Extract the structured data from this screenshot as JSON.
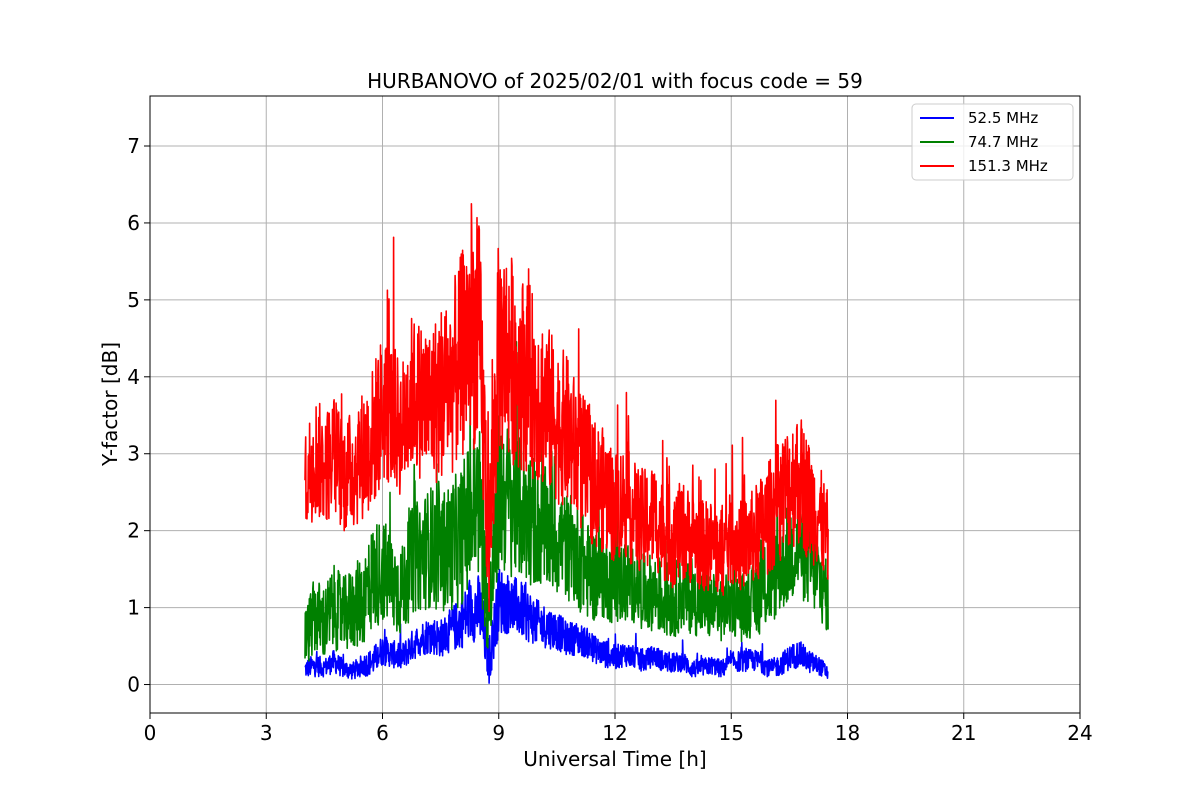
{
  "chart_data": {
    "type": "line",
    "title": "HURBANOVO of 2025/02/01 with focus code = 59",
    "xlabel": "Universal Time [h]",
    "ylabel": "Y-factor [dB]",
    "xlim": [
      0,
      24
    ],
    "ylim": [
      -0.37,
      7.65
    ],
    "xticks": [
      0,
      3,
      6,
      9,
      12,
      15,
      18,
      21,
      24
    ],
    "yticks": [
      0,
      1,
      2,
      3,
      4,
      5,
      6,
      7
    ],
    "grid": true,
    "legend_position": "top-right",
    "series": [
      {
        "name": "  52.5 MHz",
        "color": "#0000ff",
        "x": [
          4.0,
          4.25,
          4.5,
          4.75,
          5.0,
          5.25,
          5.5,
          5.75,
          6.0,
          6.25,
          6.5,
          6.75,
          7.0,
          7.25,
          7.5,
          7.75,
          8.0,
          8.25,
          8.5,
          8.75,
          9.0,
          9.25,
          9.5,
          9.75,
          10.0,
          10.25,
          10.5,
          10.75,
          11.0,
          11.25,
          11.5,
          11.75,
          12.0,
          12.25,
          12.5,
          12.75,
          13.0,
          13.25,
          13.5,
          13.75,
          14.0,
          14.25,
          14.5,
          14.75,
          15.0,
          15.25,
          15.5,
          15.75,
          16.0,
          16.25,
          16.5,
          16.75,
          17.0,
          17.25,
          17.5
        ],
        "values": [
          0.2,
          0.25,
          0.22,
          0.3,
          0.2,
          0.18,
          0.25,
          0.3,
          0.45,
          0.4,
          0.35,
          0.5,
          0.6,
          0.65,
          0.6,
          0.7,
          0.8,
          0.95,
          1.0,
          0.3,
          1.1,
          1.05,
          1.0,
          0.9,
          0.8,
          0.75,
          0.7,
          0.6,
          0.6,
          0.55,
          0.45,
          0.4,
          0.35,
          0.4,
          0.35,
          0.3,
          0.38,
          0.3,
          0.28,
          0.3,
          0.2,
          0.22,
          0.25,
          0.2,
          0.3,
          0.3,
          0.32,
          0.3,
          0.2,
          0.25,
          0.35,
          0.4,
          0.3,
          0.25,
          0.15
        ],
        "amplitude": [
          0.12,
          0.15,
          0.12,
          0.15,
          0.12,
          0.12,
          0.15,
          0.18,
          0.2,
          0.18,
          0.18,
          0.2,
          0.22,
          0.25,
          0.25,
          0.28,
          0.35,
          0.4,
          0.45,
          0.3,
          0.45,
          0.4,
          0.38,
          0.35,
          0.3,
          0.28,
          0.25,
          0.22,
          0.22,
          0.2,
          0.18,
          0.18,
          0.16,
          0.16,
          0.15,
          0.14,
          0.14,
          0.14,
          0.13,
          0.13,
          0.12,
          0.12,
          0.12,
          0.12,
          0.12,
          0.14,
          0.14,
          0.14,
          0.12,
          0.14,
          0.16,
          0.18,
          0.15,
          0.12,
          0.1
        ]
      },
      {
        "name": "  74.7 MHz",
        "color": "#008000",
        "x": [
          4.0,
          4.25,
          4.5,
          4.75,
          5.0,
          5.25,
          5.5,
          5.75,
          6.0,
          6.25,
          6.5,
          6.75,
          7.0,
          7.25,
          7.5,
          7.75,
          8.0,
          8.25,
          8.5,
          8.75,
          9.0,
          9.25,
          9.5,
          9.75,
          10.0,
          10.25,
          10.5,
          10.75,
          11.0,
          11.25,
          11.5,
          11.75,
          12.0,
          12.25,
          12.5,
          12.75,
          13.0,
          13.25,
          13.5,
          13.75,
          14.0,
          14.25,
          14.5,
          14.75,
          15.0,
          15.25,
          15.5,
          15.75,
          16.0,
          16.25,
          16.5,
          16.75,
          17.0,
          17.25,
          17.5
        ],
        "values": [
          0.6,
          0.9,
          0.8,
          1.0,
          0.9,
          1.0,
          1.1,
          1.4,
          1.5,
          1.3,
          1.2,
          1.6,
          1.7,
          1.8,
          1.7,
          1.8,
          1.9,
          2.2,
          2.4,
          0.8,
          2.5,
          2.4,
          2.3,
          2.2,
          2.1,
          2.0,
          1.9,
          1.8,
          1.7,
          1.5,
          1.4,
          1.4,
          1.3,
          1.35,
          1.3,
          1.2,
          1.2,
          1.1,
          1.1,
          1.2,
          1.1,
          1.05,
          1.0,
          1.0,
          1.1,
          1.0,
          1.05,
          1.2,
          1.3,
          1.5,
          1.7,
          1.8,
          1.6,
          1.4,
          1.1
        ],
        "amplitude": [
          0.4,
          0.5,
          0.5,
          0.55,
          0.5,
          0.55,
          0.6,
          0.7,
          0.7,
          0.65,
          0.6,
          0.7,
          0.75,
          0.8,
          0.8,
          0.85,
          0.9,
          1.0,
          1.05,
          0.6,
          1.05,
          1.0,
          0.95,
          0.9,
          0.85,
          0.8,
          0.75,
          0.7,
          0.7,
          0.65,
          0.6,
          0.55,
          0.55,
          0.55,
          0.5,
          0.5,
          0.5,
          0.5,
          0.5,
          0.5,
          0.45,
          0.45,
          0.45,
          0.45,
          0.45,
          0.45,
          0.45,
          0.55,
          0.55,
          0.6,
          0.65,
          0.7,
          0.6,
          0.55,
          0.45
        ]
      },
      {
        "name": " 151.3 MHz",
        "color": "#ff0000",
        "x": [
          4.0,
          4.25,
          4.5,
          4.75,
          5.0,
          5.25,
          5.5,
          5.75,
          6.0,
          6.25,
          6.5,
          6.75,
          7.0,
          7.25,
          7.5,
          7.75,
          8.0,
          8.25,
          8.5,
          8.75,
          9.0,
          9.25,
          9.5,
          9.75,
          10.0,
          10.25,
          10.5,
          10.75,
          11.0,
          11.25,
          11.5,
          11.75,
          12.0,
          12.25,
          12.5,
          12.75,
          13.0,
          13.25,
          13.5,
          13.75,
          14.0,
          14.25,
          14.5,
          14.75,
          15.0,
          15.25,
          15.5,
          15.75,
          16.0,
          16.25,
          16.5,
          16.75,
          17.0,
          17.25,
          17.5
        ],
        "values": [
          2.6,
          3.0,
          2.8,
          3.0,
          2.7,
          2.8,
          3.0,
          3.2,
          3.6,
          3.5,
          3.3,
          3.8,
          3.7,
          3.6,
          3.8,
          3.9,
          4.2,
          4.6,
          4.5,
          1.8,
          4.4,
          4.3,
          4.1,
          4.0,
          3.8,
          3.6,
          3.4,
          3.3,
          3.0,
          2.8,
          2.6,
          2.5,
          2.3,
          2.4,
          2.2,
          2.1,
          2.2,
          2.0,
          1.9,
          2.0,
          1.9,
          1.8,
          1.8,
          1.7,
          1.9,
          1.8,
          1.9,
          2.0,
          2.2,
          2.4,
          2.6,
          2.7,
          2.4,
          2.2,
          1.9
        ],
        "amplitude": [
          0.7,
          0.8,
          0.75,
          0.8,
          0.75,
          0.8,
          0.85,
          0.95,
          1.0,
          0.95,
          0.9,
          1.0,
          1.05,
          1.1,
          1.15,
          1.2,
          1.35,
          1.5,
          1.5,
          1.0,
          1.45,
          1.4,
          1.3,
          1.25,
          1.2,
          1.1,
          1.05,
          1.0,
          0.95,
          0.9,
          0.85,
          0.8,
          0.75,
          0.75,
          0.7,
          0.7,
          0.7,
          0.65,
          0.65,
          0.65,
          0.6,
          0.6,
          0.6,
          0.6,
          0.6,
          0.6,
          0.6,
          0.7,
          0.75,
          0.8,
          0.85,
          0.9,
          0.8,
          0.7,
          0.6
        ]
      }
    ]
  }
}
